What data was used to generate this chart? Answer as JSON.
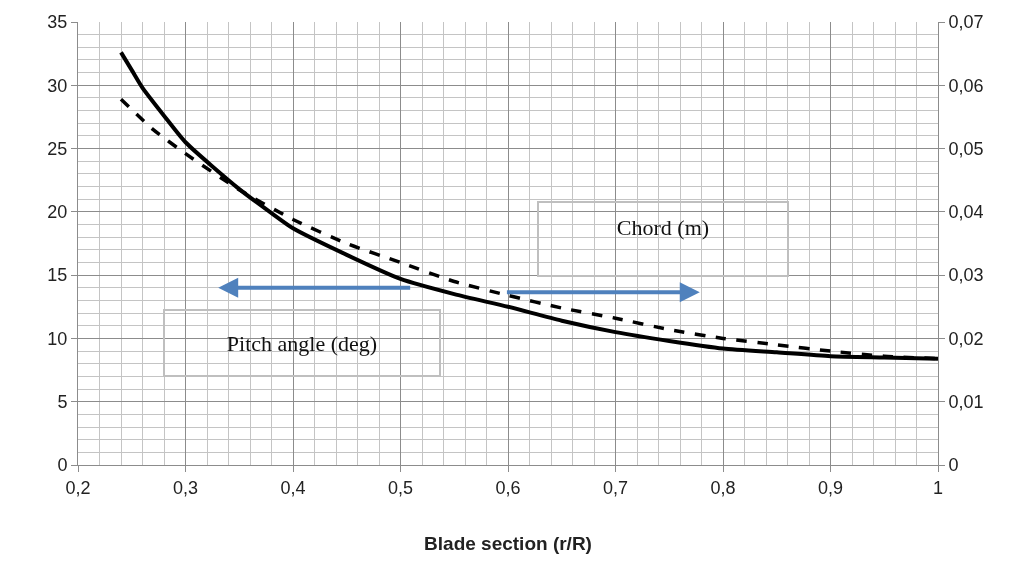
{
  "chart_data": {
    "type": "line",
    "xlabel": "Blade section (r/R)",
    "annotations": [
      "Pitch angle (deg)",
      "Chord (m)"
    ],
    "series": [
      {
        "color": "#000000",
        "line_style": "solid",
        "axis": "y",
        "x": [
          0.24,
          0.25,
          0.26,
          0.28,
          0.3,
          0.35,
          0.38,
          0.4,
          0.45,
          0.5,
          0.55,
          0.6,
          0.65,
          0.7,
          0.75,
          0.8,
          0.85,
          0.9,
          0.95,
          1.0
        ],
        "values": [
          32.6,
          31.2,
          29.8,
          27.6,
          25.5,
          21.8,
          19.9,
          18.7,
          16.6,
          14.7,
          13.5,
          12.5,
          11.4,
          10.5,
          9.8,
          9.2,
          8.9,
          8.6,
          8.5,
          8.4
        ]
      },
      {
        "color": "#000000",
        "line_style": "dashed",
        "axis": "y2",
        "x": [
          0.24,
          0.27,
          0.3,
          0.35,
          0.4,
          0.45,
          0.5,
          0.55,
          0.6,
          0.65,
          0.7,
          0.75,
          0.8,
          0.85,
          0.9,
          0.95,
          1.0
        ],
        "values": [
          0.0578,
          0.053,
          0.0492,
          0.0435,
          0.0388,
          0.035,
          0.032,
          0.029,
          0.0268,
          0.0248,
          0.0232,
          0.0214,
          0.02,
          0.019,
          0.018,
          0.0172,
          0.0168
        ]
      }
    ],
    "xlim": [
      0.2,
      1.0
    ],
    "xticks": [
      {
        "value": 0.2,
        "label": "0,2"
      },
      {
        "value": 0.22,
        "label": null
      },
      {
        "value": 0.24,
        "label": null
      },
      {
        "value": 0.26,
        "label": null
      },
      {
        "value": 0.28,
        "label": null
      },
      {
        "value": 0.3,
        "label": "0,3"
      },
      {
        "value": 0.32,
        "label": null
      },
      {
        "value": 0.34,
        "label": null
      },
      {
        "value": 0.36,
        "label": null
      },
      {
        "value": 0.38,
        "label": null
      },
      {
        "value": 0.4,
        "label": "0,4"
      },
      {
        "value": 0.42,
        "label": null
      },
      {
        "value": 0.44,
        "label": null
      },
      {
        "value": 0.46,
        "label": null
      },
      {
        "value": 0.48,
        "label": null
      },
      {
        "value": 0.5,
        "label": "0,5"
      },
      {
        "value": 0.52,
        "label": null
      },
      {
        "value": 0.54,
        "label": null
      },
      {
        "value": 0.56,
        "label": null
      },
      {
        "value": 0.58,
        "label": null
      },
      {
        "value": 0.6,
        "label": "0,6"
      },
      {
        "value": 0.62,
        "label": null
      },
      {
        "value": 0.64,
        "label": null
      },
      {
        "value": 0.66,
        "label": null
      },
      {
        "value": 0.68,
        "label": null
      },
      {
        "value": 0.7,
        "label": "0,7"
      },
      {
        "value": 0.72,
        "label": null
      },
      {
        "value": 0.74,
        "label": null
      },
      {
        "value": 0.76,
        "label": null
      },
      {
        "value": 0.78,
        "label": null
      },
      {
        "value": 0.8,
        "label": "0,8"
      },
      {
        "value": 0.82,
        "label": null
      },
      {
        "value": 0.84,
        "label": null
      },
      {
        "value": 0.86,
        "label": null
      },
      {
        "value": 0.88,
        "label": null
      },
      {
        "value": 0.9,
        "label": "0,9"
      },
      {
        "value": 0.92,
        "label": null
      },
      {
        "value": 0.94,
        "label": null
      },
      {
        "value": 0.96,
        "label": null
      },
      {
        "value": 0.98,
        "label": null
      },
      1
    ],
    "ylim": [
      0,
      35
    ],
    "yticks": [
      0,
      {
        "value": 1,
        "label": null
      },
      {
        "value": 2,
        "label": null
      },
      {
        "value": 3,
        "label": null
      },
      {
        "value": 4,
        "label": null
      },
      5,
      {
        "value": 6,
        "label": null
      },
      {
        "value": 7,
        "label": null
      },
      {
        "value": 8,
        "label": null
      },
      {
        "value": 9,
        "label": null
      },
      10,
      {
        "value": 11,
        "label": null
      },
      {
        "value": 12,
        "label": null
      },
      {
        "value": 13,
        "label": null
      },
      {
        "value": 14,
        "label": null
      },
      15,
      {
        "value": 16,
        "label": null
      },
      {
        "value": 17,
        "label": null
      },
      {
        "value": 18,
        "label": null
      },
      {
        "value": 19,
        "label": null
      },
      20,
      {
        "value": 21,
        "label": null
      },
      {
        "value": 22,
        "label": null
      },
      {
        "value": 23,
        "label": null
      },
      {
        "value": 24,
        "label": null
      },
      25,
      {
        "value": 26,
        "label": null
      },
      {
        "value": 27,
        "label": null
      },
      {
        "value": 28,
        "label": null
      },
      {
        "value": 29,
        "label": null
      },
      30,
      {
        "value": 31,
        "label": null
      },
      {
        "value": 32,
        "label": null
      },
      {
        "value": 33,
        "label": null
      },
      {
        "value": 34,
        "label": null
      },
      35
    ],
    "y2lim": [
      0,
      0.07
    ],
    "y2ticks": [
      0,
      {
        "value": 0.01,
        "label": "0,01"
      },
      {
        "value": 0.02,
        "label": "0,02"
      },
      {
        "value": 0.03,
        "label": "0,03"
      },
      {
        "value": 0.04,
        "label": "0,04"
      },
      {
        "value": 0.05,
        "label": "0,05"
      },
      {
        "value": 0.06,
        "label": "0,06"
      },
      {
        "value": 0.07,
        "label": "0,07"
      }
    ],
    "grid": true
  }
}
